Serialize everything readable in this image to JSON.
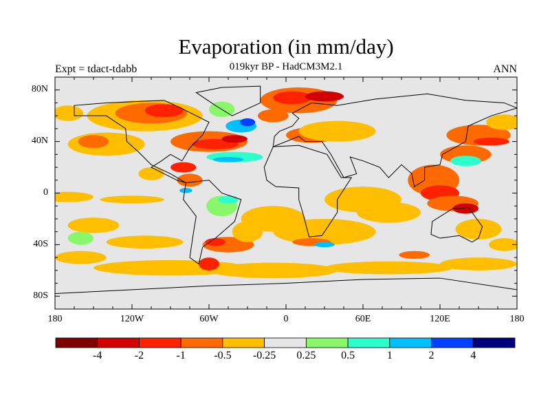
{
  "chart_data": {
    "type": "heatmap",
    "title": "Evaporation (in mm/day)",
    "subtitle": "019kyr BP - HadCM3M2.1",
    "left_label": "Expt = tdact-tdabb",
    "right_label": "ANN",
    "projection": "cylindrical-equidistant",
    "xlim": [
      -180,
      180
    ],
    "ylim": [
      -90,
      90
    ],
    "x_ticks": [
      "180",
      "120W",
      "60W",
      "0",
      "60E",
      "120E",
      "180"
    ],
    "y_ticks": [
      "80N",
      "40N",
      "0",
      "40S",
      "80S"
    ],
    "colorbar": {
      "levels": [
        "-4",
        "-2",
        "-1",
        "-0.5",
        "-0.25",
        "0.25",
        "0.5",
        "1",
        "2",
        "4"
      ],
      "colors": [
        "#7f0000",
        "#d20000",
        "#ff2200",
        "#ff6a00",
        "#ffbf00",
        "#e6e6e6",
        "#88f86a",
        "#2cffcc",
        "#00bfff",
        "#0040ff",
        "#00007f"
      ]
    }
  }
}
